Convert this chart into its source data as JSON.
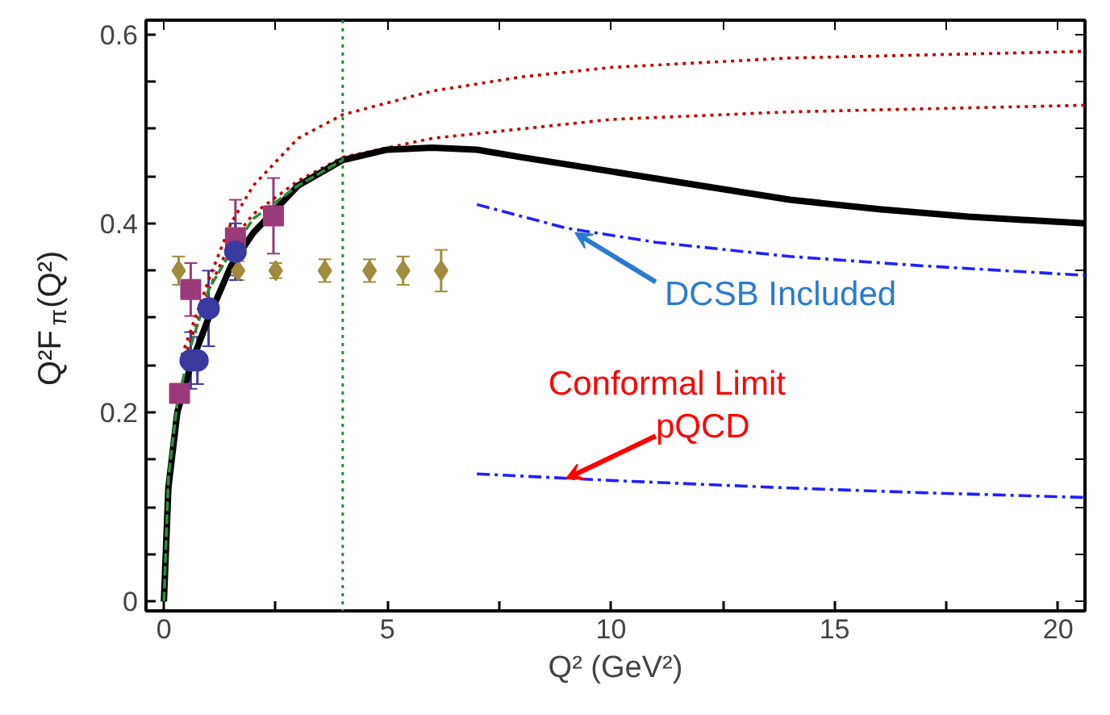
{
  "chart_data": {
    "type": "line",
    "xlabel": "Q² (GeV²)",
    "ylabel": "Q²F$_{π}$(Q²)",
    "xlim": [
      -0.4,
      20.6
    ],
    "ylim": [
      -0.01,
      0.615
    ],
    "xticks": [
      0,
      {
        "value": 2.5,
        "label": null
      },
      5,
      {
        "value": 7.5,
        "label": null
      },
      10,
      {
        "value": 12.5,
        "label": null
      },
      15,
      {
        "value": 17.5,
        "label": null
      },
      20
    ],
    "yticks": [
      0,
      {
        "value": 0.05,
        "label": null
      },
      {
        "value": 0.1,
        "label": null
      },
      {
        "value": 0.15,
        "label": null
      },
      0.2,
      {
        "value": 0.25,
        "label": null
      },
      {
        "value": 0.3,
        "label": null
      },
      {
        "value": 0.35,
        "label": null
      },
      0.4,
      {
        "value": 0.45,
        "label": null
      },
      {
        "value": 0.5,
        "label": null
      },
      {
        "value": 0.55,
        "label": null
      },
      0.6
    ],
    "grid": false,
    "ref_lines": [
      {
        "axis": "x",
        "value": 4,
        "color": "#2e8b3a",
        "line_style": "dotted"
      }
    ],
    "series": [
      {
        "color": "#c00000",
        "line_style": "dotted",
        "x": [
          0.4,
          1,
          1.5,
          2,
          3,
          4,
          6,
          8,
          10,
          14,
          20.6
        ],
        "values": [
          0.26,
          0.34,
          0.4,
          0.44,
          0.49,
          0.515,
          0.54,
          0.555,
          0.565,
          0.575,
          0.582
        ]
      },
      {
        "color": "#c00000",
        "line_style": "dotted",
        "x": [
          0.4,
          1,
          1.5,
          2,
          3,
          4,
          6,
          8,
          10,
          14,
          20.6
        ],
        "values": [
          0.25,
          0.33,
          0.38,
          0.41,
          0.445,
          0.47,
          0.49,
          0.5,
          0.51,
          0.518,
          0.525
        ]
      },
      {
        "color": "#2e8b3a",
        "line_style": "dashed",
        "x": [
          0,
          0.1,
          0.3,
          0.6,
          1,
          1.5,
          2,
          3,
          4
        ],
        "values": [
          0,
          0.13,
          0.21,
          0.27,
          0.33,
          0.37,
          0.405,
          0.44,
          0.467
        ]
      },
      {
        "color": "#000000",
        "line_style": "solid",
        "x": [
          0,
          0.1,
          0.3,
          0.6,
          1,
          1.5,
          2,
          3,
          4,
          5,
          6,
          7,
          8,
          10,
          12,
          14,
          16,
          18,
          20.6
        ],
        "values": [
          0,
          0.12,
          0.2,
          0.25,
          0.3,
          0.355,
          0.39,
          0.44,
          0.467,
          0.478,
          0.48,
          0.478,
          0.47,
          0.455,
          0.44,
          0.425,
          0.415,
          0.407,
          0.4
        ]
      },
      {
        "color": "#2020ff",
        "line_style": "dashdot",
        "x": [
          7,
          9,
          11,
          14,
          17,
          20.6
        ],
        "values": [
          0.42,
          0.395,
          0.38,
          0.365,
          0.355,
          0.345
        ]
      },
      {
        "color": "#2020ff",
        "line_style": "dashdot",
        "x": [
          7,
          10,
          14,
          17,
          20.6
        ],
        "values": [
          0.135,
          0.128,
          0.12,
          0.115,
          0.11
        ]
      },
      {
        "type": "scatter",
        "color": "#a08c3c",
        "marker": "diamond",
        "x": [
          0.33,
          1.66,
          2.5,
          3.6,
          4.6,
          5.35,
          6.2
        ],
        "values": [
          0.35,
          0.35,
          0.35,
          0.35,
          0.35,
          0.35,
          0.35
        ],
        "errors": [
          0.015,
          0.01,
          0.008,
          0.012,
          0.012,
          0.015,
          0.022
        ]
      },
      {
        "type": "scatter",
        "color": "#9b3a78",
        "marker": "square",
        "x": [
          0.35,
          0.6,
          1.6,
          2.45
        ],
        "values": [
          0.22,
          0.33,
          0.385,
          0.408
        ],
        "errors": [
          0.008,
          0.028,
          0.04,
          0.04
        ]
      },
      {
        "type": "scatter",
        "color": "#3a3aa0",
        "marker": "circle",
        "x": [
          0.6,
          0.75,
          1.0,
          1.6
        ],
        "values": [
          0.255,
          0.255,
          0.31,
          0.37
        ],
        "errors": [
          0.03,
          0.025,
          0.04,
          0.03
        ]
      }
    ],
    "annotations": [
      {
        "text": "DCSB Included",
        "x": 9.2,
        "y": 0.39
      },
      {
        "text": "Conformal Limit\npQCD",
        "x": 9.0,
        "y": 0.13
      }
    ]
  }
}
